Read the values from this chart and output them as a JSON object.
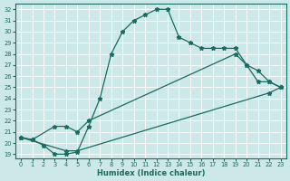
{
  "xlabel": "Humidex (Indice chaleur)",
  "bg_color": "#cce8e8",
  "grid_color": "#ffffff",
  "line_color": "#1a6b60",
  "xlim_min": -0.5,
  "xlim_max": 23.5,
  "ylim_min": 18.6,
  "ylim_max": 32.5,
  "xtick_vals": [
    0,
    1,
    2,
    3,
    4,
    5,
    6,
    7,
    8,
    9,
    10,
    11,
    12,
    13,
    14,
    15,
    16,
    17,
    18,
    19,
    20,
    21,
    22,
    23
  ],
  "ytick_vals": [
    19,
    20,
    21,
    22,
    23,
    24,
    25,
    26,
    27,
    28,
    29,
    30,
    31,
    32
  ],
  "curve1_x": [
    0,
    1,
    2,
    3,
    4,
    5,
    6,
    7,
    8,
    9,
    10,
    11,
    12,
    13,
    14,
    15,
    16,
    17,
    18,
    19,
    20,
    21,
    22,
    23
  ],
  "curve1_y": [
    20.5,
    20.3,
    19.8,
    19.0,
    19.0,
    19.2,
    21.5,
    24.0,
    28.0,
    30.0,
    31.0,
    31.5,
    32.0,
    32.0,
    29.5,
    29.0,
    28.5,
    28.5,
    28.5,
    28.5,
    27.0,
    25.5,
    25.5,
    25.0
  ],
  "curve2_x": [
    0,
    1,
    3,
    4,
    5,
    6,
    19,
    20,
    21,
    22,
    23
  ],
  "curve2_y": [
    20.5,
    20.3,
    21.5,
    21.5,
    21.0,
    22.0,
    28.0,
    27.0,
    26.5,
    25.5,
    25.0
  ],
  "curve3_x": [
    0,
    4,
    5,
    22,
    23
  ],
  "curve3_y": [
    20.5,
    19.3,
    19.3,
    24.5,
    25.0
  ]
}
